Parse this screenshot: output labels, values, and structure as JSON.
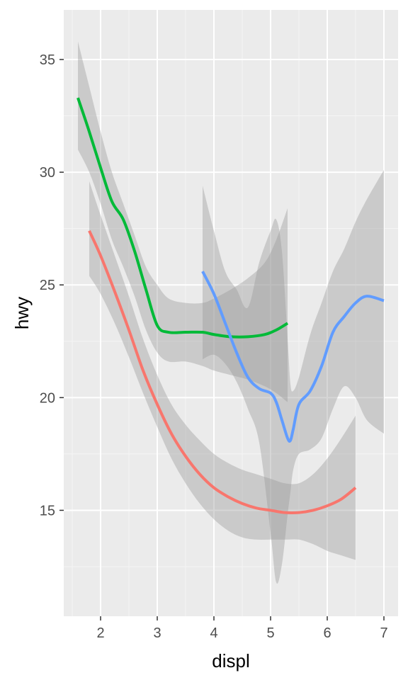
{
  "chart_data": {
    "type": "line",
    "title": "",
    "xlabel": "displ",
    "ylabel": "hwy",
    "xlim": [
      1.35,
      7.25
    ],
    "ylim": [
      10.3,
      37.2
    ],
    "x_ticks": [
      2,
      3,
      4,
      5,
      6,
      7
    ],
    "y_ticks": [
      15,
      20,
      25,
      30,
      35
    ],
    "grid": true,
    "legend": "none",
    "colors": {
      "panel_bg": "#ebebeb",
      "grid_major": "#ffffff",
      "grid_minor": "#f5f5f5",
      "ribbon": "#999999"
    },
    "series": [
      {
        "color": "#f8766d",
        "x": [
          1.8,
          2.0,
          2.25,
          2.5,
          2.75,
          3.0,
          3.25,
          3.5,
          3.75,
          4.0,
          4.25,
          4.5,
          4.75,
          5.0,
          5.25,
          5.5,
          5.75,
          6.0,
          6.25,
          6.5
        ],
        "y": [
          27.4,
          26.3,
          24.7,
          23.0,
          21.2,
          19.7,
          18.4,
          17.4,
          16.6,
          16.0,
          15.6,
          15.3,
          15.1,
          15.0,
          14.9,
          14.9,
          15.0,
          15.2,
          15.5,
          16.0
        ],
        "lower": [
          25.4,
          24.6,
          23.3,
          21.8,
          20.2,
          18.7,
          17.3,
          16.2,
          15.3,
          14.6,
          14.1,
          13.8,
          13.7,
          13.7,
          13.7,
          13.7,
          13.5,
          13.2,
          13.0,
          12.8
        ],
        "upper": [
          29.6,
          28.1,
          26.3,
          24.5,
          22.6,
          21.0,
          19.7,
          18.8,
          18.1,
          17.5,
          17.1,
          16.8,
          16.6,
          16.4,
          16.2,
          16.2,
          16.6,
          17.3,
          18.2,
          19.2
        ]
      },
      {
        "color": "#00ba38",
        "x": [
          1.6,
          1.8,
          2.0,
          2.2,
          2.4,
          2.6,
          2.8,
          3.0,
          3.2,
          3.5,
          3.8,
          4.0,
          4.3,
          4.6,
          4.9,
          5.1,
          5.3
        ],
        "y": [
          33.3,
          31.8,
          30.2,
          28.7,
          27.9,
          26.5,
          24.8,
          23.2,
          22.9,
          22.9,
          22.9,
          22.8,
          22.7,
          22.7,
          22.8,
          23.0,
          23.3
        ],
        "lower": [
          31.0,
          30.0,
          28.6,
          27.0,
          25.8,
          24.5,
          23.0,
          22.0,
          21.6,
          21.6,
          21.4,
          21.2,
          21.0,
          20.8,
          20.5,
          20.2,
          19.8
        ],
        "upper": [
          35.8,
          33.8,
          31.8,
          30.0,
          28.6,
          27.2,
          25.8,
          25.0,
          24.4,
          24.2,
          24.2,
          24.4,
          24.8,
          25.3,
          26.0,
          27.0,
          28.4
        ]
      },
      {
        "color": "#619cff",
        "x": [
          3.8,
          4.0,
          4.2,
          4.4,
          4.6,
          4.8,
          5.0,
          5.1,
          5.2,
          5.3,
          5.35,
          5.4,
          5.5,
          5.7,
          5.9,
          6.1,
          6.3,
          6.5,
          6.7,
          7.0
        ],
        "y": [
          25.6,
          24.6,
          23.3,
          22.0,
          20.9,
          20.4,
          20.2,
          19.8,
          19.0,
          18.2,
          18.1,
          18.6,
          19.7,
          20.3,
          21.4,
          22.9,
          23.6,
          24.2,
          24.5,
          24.3
        ],
        "lower": [
          21.7,
          21.9,
          21.5,
          20.7,
          19.5,
          18.0,
          14.0,
          11.8,
          12.6,
          14.8,
          15.8,
          16.8,
          17.5,
          17.7,
          18.2,
          19.5,
          20.5,
          20.0,
          19.0,
          18.4
        ],
        "upper": [
          29.4,
          27.4,
          25.6,
          24.8,
          24.0,
          26.0,
          27.4,
          27.9,
          26.5,
          22.6,
          20.6,
          20.3,
          20.9,
          22.8,
          24.2,
          25.6,
          26.6,
          27.8,
          28.8,
          30.1
        ]
      }
    ]
  }
}
